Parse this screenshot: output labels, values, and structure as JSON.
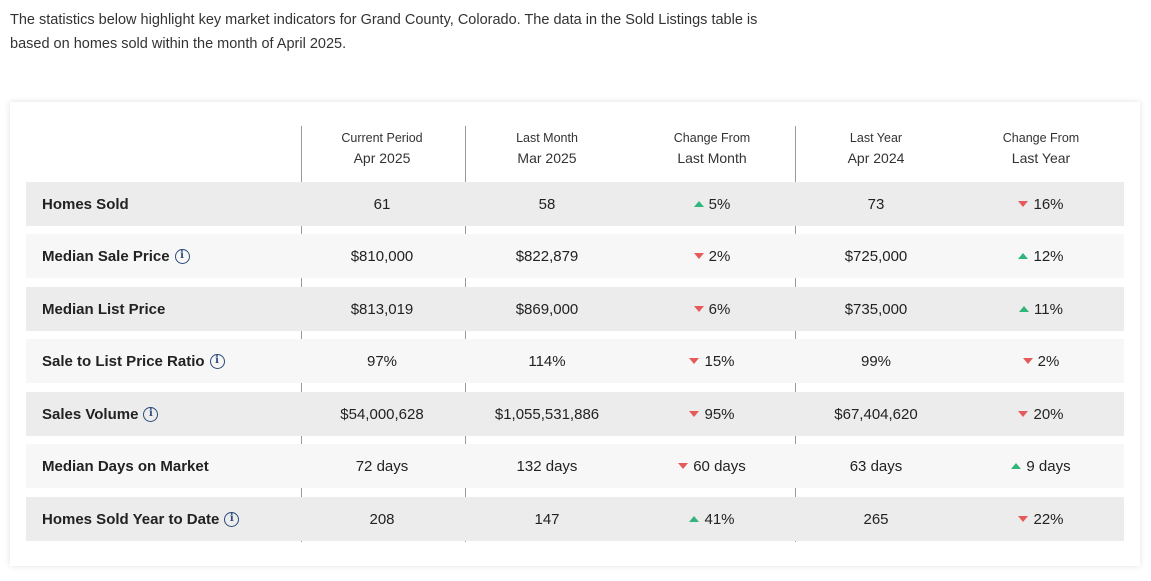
{
  "intro": "The statistics below highlight key market indicators for Grand County, Colorado. The data in the Sold Listings table is based on homes sold within the month of April 2025.",
  "columns": [
    {
      "line1": "Current Period",
      "line2": "Apr 2025"
    },
    {
      "line1": "Last Month",
      "line2": "Mar 2025"
    },
    {
      "line1": "Change From",
      "line2": "Last Month"
    },
    {
      "line1": "Last Year",
      "line2": "Apr 2024"
    },
    {
      "line1": "Change From",
      "line2": "Last Year"
    }
  ],
  "rows": [
    {
      "label": "Homes Sold",
      "info": false,
      "current": "61",
      "last_month": "58",
      "change_month": {
        "dir": "up",
        "value": "5%"
      },
      "last_year": "73",
      "change_year": {
        "dir": "down",
        "value": "16%"
      }
    },
    {
      "label": "Median Sale Price",
      "info": true,
      "current": "$810,000",
      "last_month": "$822,879",
      "change_month": {
        "dir": "down",
        "value": "2%"
      },
      "last_year": "$725,000",
      "change_year": {
        "dir": "up",
        "value": "12%"
      }
    },
    {
      "label": "Median List Price",
      "info": false,
      "current": "$813,019",
      "last_month": "$869,000",
      "change_month": {
        "dir": "down",
        "value": "6%"
      },
      "last_year": "$735,000",
      "change_year": {
        "dir": "up",
        "value": "11%"
      }
    },
    {
      "label": "Sale to List Price Ratio",
      "info": true,
      "current": "97%",
      "last_month": "114%",
      "change_month": {
        "dir": "down",
        "value": "15%"
      },
      "last_year": "99%",
      "change_year": {
        "dir": "down",
        "value": "2%"
      }
    },
    {
      "label": "Sales Volume",
      "info": true,
      "current": "$54,000,628",
      "last_month": "$1,055,531,886",
      "change_month": {
        "dir": "down",
        "value": "95%"
      },
      "last_year": "$67,404,620",
      "change_year": {
        "dir": "down",
        "value": "20%"
      }
    },
    {
      "label": "Median Days on Market",
      "info": false,
      "current": "72 days",
      "last_month": "132 days",
      "change_month": {
        "dir": "down",
        "value": "60 days"
      },
      "last_year": "63 days",
      "change_year": {
        "dir": "up",
        "value": "9 days"
      }
    },
    {
      "label": "Homes Sold Year to Date",
      "info": true,
      "current": "208",
      "last_month": "147",
      "change_month": {
        "dir": "up",
        "value": "41%"
      },
      "last_year": "265",
      "change_year": {
        "dir": "down",
        "value": "22%"
      }
    }
  ],
  "info_glyph": "i",
  "colors": {
    "up": "#2fb67c",
    "down": "#e55a5a",
    "info": "#2a4a7a"
  }
}
